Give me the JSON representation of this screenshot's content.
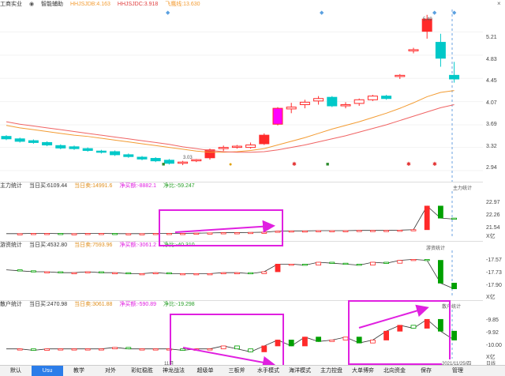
{
  "main_header": {
    "stock_name": "工商实业",
    "indicator": "智能辅助",
    "line1": "HHJSJDB:4.163",
    "line2": "HHJSJDC:3.918",
    "line3": "飞鹰线:13.630"
  },
  "colors": {
    "up": "#ff2a2a",
    "down": "#00c8c8",
    "ma1": "#f39c33",
    "ma2": "#f06464",
    "highlight": "#e020e0",
    "cyan": "#00e5e5",
    "magenta": "#ff00ff",
    "green": "#00a000"
  },
  "main_axis": [
    "5.21",
    "4.83",
    "4.45",
    "4.07",
    "3.69",
    "3.32",
    "2.94"
  ],
  "annotations": {
    "high": "5.49",
    "low": "3.03"
  },
  "panel1": {
    "name": "主力统计",
    "buy": "当日买:6109.44",
    "sell": "当日卖:14991.6",
    "net": "净买额:-8882.1",
    "ratio": "净比:-59.247",
    "title_right": "主力统计",
    "axis": [
      "22.97",
      "22.26",
      "21.54"
    ],
    "unit": "X亿"
  },
  "panel2": {
    "name": "游资统计",
    "buy": "当日买:4532.80",
    "sell": "当日卖:7593.96",
    "net": "净买额:-3061.2",
    "ratio": "净比:-40.310",
    "title_right": "游资统计",
    "axis": [
      "-17.57",
      "-17.73",
      "-17.90"
    ],
    "unit": "X亿"
  },
  "panel3": {
    "name": "散户统计",
    "buy": "当日买:2470.98",
    "sell": "当日卖:3061.88",
    "net": "净买额:-590.89",
    "ratio": "净比:-19.298",
    "title_right": "散户统计",
    "axis": [
      "-9.85",
      "-9.92",
      "-10.00"
    ],
    "unit": "X亿"
  },
  "dates": {
    "d1": "11月",
    "d2": "2021/11/25/四",
    "right": "日线"
  },
  "tabs": [
    "默认",
    "Usu",
    "教学",
    "对外",
    "彩虹稳胜",
    "神龙战法",
    "超级单",
    "三板斧",
    "水手模式",
    "海洋模式",
    "主力控盘",
    "大单博弈",
    "北向资金",
    "保存",
    "管理"
  ],
  "active_tab": 1,
  "chart_data": {
    "type": "candlestick",
    "candles": [
      [
        3.5,
        3.52,
        3.44,
        3.46
      ],
      [
        3.46,
        3.48,
        3.4,
        3.42
      ],
      [
        3.43,
        3.45,
        3.38,
        3.4
      ],
      [
        3.4,
        3.42,
        3.34,
        3.36
      ],
      [
        3.35,
        3.37,
        3.29,
        3.31
      ],
      [
        3.33,
        3.35,
        3.28,
        3.3
      ],
      [
        3.3,
        3.32,
        3.25,
        3.27
      ],
      [
        3.26,
        3.28,
        3.22,
        3.24
      ],
      [
        3.25,
        3.27,
        3.18,
        3.2
      ],
      [
        3.2,
        3.22,
        3.15,
        3.17
      ],
      [
        3.16,
        3.18,
        3.11,
        3.13
      ],
      [
        3.14,
        3.16,
        3.08,
        3.1
      ],
      [
        3.11,
        3.13,
        3.04,
        3.06
      ],
      [
        3.06,
        3.1,
        3.03,
        3.08
      ],
      [
        3.1,
        3.13,
        3.08,
        3.12
      ],
      [
        3.15,
        3.3,
        3.12,
        3.28
      ],
      [
        3.3,
        3.35,
        3.26,
        3.32
      ],
      [
        3.32,
        3.36,
        3.3,
        3.34
      ],
      [
        3.32,
        3.4,
        3.3,
        3.36
      ],
      [
        3.38,
        3.55,
        3.36,
        3.52
      ],
      [
        3.7,
        3.98,
        3.68,
        3.96
      ],
      [
        3.95,
        4.05,
        3.88,
        3.98
      ],
      [
        4.02,
        4.1,
        3.96,
        4.06
      ],
      [
        4.08,
        4.16,
        4.02,
        4.12
      ],
      [
        4.14,
        4.16,
        3.98,
        4.0
      ],
      [
        4.0,
        4.06,
        3.96,
        4.02
      ],
      [
        4.04,
        4.12,
        4.0,
        4.1
      ],
      [
        4.1,
        4.18,
        4.08,
        4.16
      ],
      [
        4.16,
        4.18,
        4.1,
        4.12
      ],
      [
        4.48,
        4.52,
        4.44,
        4.5
      ],
      [
        4.9,
        4.95,
        4.86,
        4.92
      ],
      [
        5.22,
        5.49,
        5.1,
        5.42
      ],
      [
        5.04,
        5.18,
        4.64,
        4.78
      ],
      [
        4.5,
        4.72,
        4.38,
        4.44
      ]
    ],
    "ma1": [
      3.68,
      3.64,
      3.61,
      3.58,
      3.55,
      3.52,
      3.5,
      3.47,
      3.44,
      3.41,
      3.38,
      3.35,
      3.32,
      3.29,
      3.26,
      3.24,
      3.24,
      3.25,
      3.27,
      3.3,
      3.36,
      3.42,
      3.48,
      3.55,
      3.62,
      3.68,
      3.74,
      3.81,
      3.88,
      3.96,
      4.05,
      4.15,
      4.22,
      4.25
    ],
    "ma2": [
      3.74,
      3.7,
      3.67,
      3.64,
      3.61,
      3.58,
      3.55,
      3.52,
      3.49,
      3.46,
      3.43,
      3.4,
      3.37,
      3.33,
      3.3,
      3.27,
      3.25,
      3.24,
      3.24,
      3.25,
      3.28,
      3.32,
      3.36,
      3.41,
      3.46,
      3.51,
      3.57,
      3.63,
      3.69,
      3.76,
      3.83,
      3.9,
      3.97,
      4.02
    ],
    "ylim": [
      2.94,
      5.5
    ],
    "panel1_line": [
      21.5,
      21.5,
      21.51,
      21.51,
      21.5,
      21.5,
      21.51,
      21.51,
      21.5,
      21.5,
      21.5,
      21.51,
      21.51,
      21.51,
      21.52,
      21.53,
      21.54,
      21.54,
      21.55,
      21.56,
      21.6,
      21.61,
      21.61,
      21.62,
      21.62,
      21.62,
      21.63,
      21.63,
      21.63,
      21.64,
      21.66,
      22.6,
      22.12,
      22.08
    ],
    "panel1_ylim": [
      21.4,
      23.1
    ],
    "panel2_line": [
      -17.68,
      -17.69,
      -17.7,
      -17.7,
      -17.71,
      -17.71,
      -17.7,
      -17.71,
      -17.71,
      -17.72,
      -17.72,
      -17.71,
      -17.72,
      -17.72,
      -17.72,
      -17.72,
      -17.71,
      -17.71,
      -17.72,
      -17.7,
      -17.62,
      -17.62,
      -17.63,
      -17.6,
      -17.61,
      -17.62,
      -17.63,
      -17.6,
      -17.61,
      -17.58,
      -17.57,
      -17.58,
      -17.82,
      -17.88
    ],
    "panel2_ylim": [
      -17.95,
      -17.5
    ],
    "panel3_line": [
      -10.0,
      -10.0,
      -10.01,
      -10.0,
      -10.0,
      -10.0,
      -10.0,
      -10.0,
      -9.99,
      -10.0,
      -10.0,
      -10.0,
      -10.0,
      -10.01,
      -10.0,
      -10.0,
      -9.98,
      -10.0,
      -10.02,
      -9.98,
      -9.94,
      -9.98,
      -9.92,
      -9.95,
      -9.94,
      -9.92,
      -9.96,
      -9.94,
      -9.88,
      -9.84,
      -9.86,
      -9.8,
      -9.88,
      -9.94
    ],
    "panel3_ylim": [
      -10.05,
      -9.75
    ]
  }
}
